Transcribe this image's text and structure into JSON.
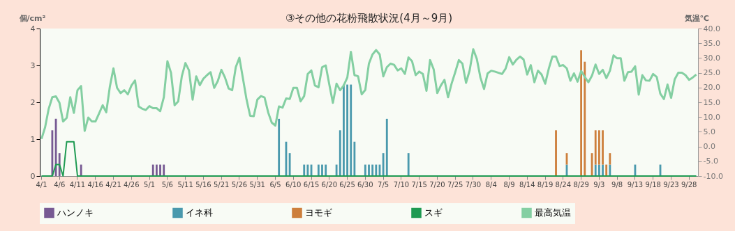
{
  "chart_data": {
    "type": "bar",
    "title": "③その他の花粉飛散状況(4月～9月)",
    "ylabel": "個/cm²",
    "y2label": "気温℃",
    "categories": [
      "4/1",
      null,
      null,
      null,
      null,
      "4/6",
      null,
      null,
      null,
      null,
      "4/11",
      null,
      null,
      null,
      null,
      "4/16",
      null,
      null,
      null,
      null,
      "4/21",
      null,
      null,
      null,
      null,
      "4/26",
      null,
      null,
      null,
      null,
      "5/1",
      null,
      null,
      null,
      null,
      "5/6",
      null,
      null,
      null,
      null,
      "5/11",
      null,
      null,
      null,
      null,
      "5/16",
      null,
      null,
      null,
      null,
      "5/21",
      null,
      null,
      null,
      null,
      "5/26",
      null,
      null,
      null,
      null,
      "5/31",
      null,
      null,
      null,
      null,
      "6/5",
      null,
      null,
      null,
      null,
      "6/10",
      null,
      null,
      null,
      null,
      "6/15",
      null,
      null,
      null,
      null,
      "6/20",
      null,
      null,
      null,
      null,
      "6/25",
      null,
      null,
      null,
      null,
      "6/30",
      null,
      null,
      null,
      null,
      "7/5",
      null,
      null,
      null,
      null,
      "7/10",
      null,
      null,
      null,
      null,
      "7/15",
      null,
      null,
      null,
      null,
      "7/20",
      null,
      null,
      null,
      null,
      "7/25",
      null,
      null,
      null,
      null,
      "7/30",
      null,
      null,
      null,
      null,
      "8/4",
      null,
      null,
      null,
      null,
      "8/9",
      null,
      null,
      null,
      null,
      "8/14",
      null,
      null,
      null,
      null,
      "8/19",
      null,
      null,
      null,
      null,
      "8/24",
      null,
      null,
      null,
      null,
      "8/29",
      null,
      null,
      null,
      null,
      "9/3",
      null,
      null,
      null,
      null,
      "9/8",
      null,
      null,
      null,
      null,
      "9/13",
      null,
      null,
      null,
      null,
      "9/18",
      null,
      null,
      null,
      null,
      "9/23",
      null,
      null,
      null,
      null,
      "9/28",
      null,
      null
    ],
    "ylim": [
      0,
      4
    ],
    "yticks": [
      0,
      1,
      2,
      3,
      4
    ],
    "y2lim": [
      -10,
      40
    ],
    "y2ticks": [
      {
        "value": -10,
        "label": "-10.0"
      },
      {
        "value": -5,
        "label": "-5.0"
      },
      {
        "value": 0,
        "label": "0.0"
      },
      {
        "value": 5,
        "label": "5.0"
      },
      {
        "value": 10,
        "label": "10.0"
      },
      {
        "value": 15,
        "label": "15.0"
      },
      {
        "value": 20,
        "label": "20.0"
      },
      {
        "value": 25,
        "label": "25.0"
      },
      {
        "value": 30,
        "label": "30.0"
      },
      {
        "value": 35,
        "label": "35.0"
      },
      {
        "value": 40,
        "label": "40.0"
      }
    ],
    "stacked": true,
    "legend": "bottom",
    "series": [
      {
        "name": "ハンノキ",
        "color": "#775a93",
        "values": [
          null,
          null,
          null,
          1.24,
          1.55,
          0.62,
          null,
          null,
          null,
          null,
          null,
          0.31,
          null,
          null,
          null,
          null,
          null,
          null,
          null,
          null,
          null,
          null,
          null,
          null,
          null,
          null,
          null,
          null,
          null,
          null,
          null,
          0.31,
          0.31,
          0.31,
          0.31,
          null,
          null,
          null,
          null,
          null,
          null,
          null,
          null,
          null,
          null,
          null,
          null,
          null,
          null,
          null,
          null,
          null,
          null,
          null,
          null,
          null,
          null,
          null,
          null,
          null,
          null,
          null,
          null,
          null,
          null,
          null,
          null,
          null,
          null,
          null,
          null,
          null,
          null,
          null,
          null,
          null,
          null,
          null,
          null,
          null,
          null,
          null,
          null,
          null,
          null,
          null,
          null,
          null,
          null,
          null,
          null,
          null,
          null,
          null,
          null,
          null,
          null,
          null,
          null,
          null,
          null,
          null,
          null,
          null,
          null,
          null,
          null,
          null,
          null,
          null,
          null,
          null,
          null,
          null,
          null,
          null,
          null,
          null,
          null,
          null,
          null,
          null,
          null,
          null,
          null,
          null,
          null,
          null,
          null,
          null,
          null,
          null,
          null,
          null,
          null,
          null,
          null,
          null,
          null,
          null,
          null,
          null,
          null,
          null,
          null,
          null,
          null,
          null,
          null,
          null,
          null,
          null,
          null,
          null,
          null,
          null,
          null,
          null,
          null,
          null,
          null,
          null,
          null,
          null,
          null,
          null,
          null,
          null,
          null,
          null,
          null,
          null,
          null,
          null,
          null,
          null,
          null,
          null,
          null,
          null,
          null,
          null,
          null
        ]
      },
      {
        "name": "イネ科",
        "color": "#4a99ad",
        "values": [
          null,
          null,
          null,
          null,
          null,
          null,
          null,
          null,
          null,
          null,
          null,
          null,
          null,
          null,
          null,
          null,
          null,
          null,
          null,
          null,
          null,
          null,
          null,
          null,
          null,
          null,
          null,
          null,
          null,
          null,
          null,
          null,
          null,
          null,
          null,
          null,
          null,
          null,
          null,
          null,
          null,
          null,
          null,
          null,
          null,
          null,
          null,
          null,
          null,
          null,
          null,
          null,
          null,
          null,
          null,
          null,
          null,
          null,
          null,
          null,
          null,
          null,
          null,
          null,
          null,
          null,
          1.55,
          null,
          0.93,
          0.62,
          null,
          null,
          null,
          0.31,
          0.31,
          0.31,
          null,
          0.31,
          0.31,
          0.31,
          null,
          null,
          0.31,
          1.24,
          2.48,
          2.48,
          2.48,
          0.93,
          null,
          null,
          0.31,
          0.31,
          0.31,
          0.31,
          0.31,
          0.62,
          1.55,
          null,
          null,
          null,
          null,
          null,
          0.62,
          null,
          null,
          null,
          null,
          null,
          null,
          null,
          null,
          null,
          null,
          null,
          null,
          null,
          null,
          null,
          null,
          null,
          null,
          null,
          null,
          null,
          null,
          null,
          null,
          null,
          null,
          null,
          null,
          null,
          null,
          null,
          null,
          null,
          null,
          null,
          null,
          null,
          null,
          null,
          null,
          null,
          null,
          null,
          0.31,
          null,
          null,
          null,
          null,
          null,
          null,
          null,
          0.31,
          0.31,
          0.31,
          null,
          0.31,
          null,
          null,
          null,
          null,
          null,
          null,
          0.31,
          null,
          null,
          null,
          null,
          null,
          null,
          0.31,
          null,
          null,
          null,
          null,
          null,
          null,
          null,
          null,
          null,
          null
        ]
      },
      {
        "name": "ヨモギ",
        "color": "#cd7f3c",
        "values": [
          null,
          null,
          null,
          null,
          null,
          null,
          null,
          null,
          null,
          null,
          null,
          null,
          null,
          null,
          null,
          null,
          null,
          null,
          null,
          null,
          null,
          null,
          null,
          null,
          null,
          null,
          null,
          null,
          null,
          null,
          null,
          null,
          null,
          null,
          null,
          null,
          null,
          null,
          null,
          null,
          null,
          null,
          null,
          null,
          null,
          null,
          null,
          null,
          null,
          null,
          null,
          null,
          null,
          null,
          null,
          null,
          null,
          null,
          null,
          null,
          null,
          null,
          null,
          null,
          null,
          null,
          null,
          null,
          null,
          null,
          null,
          null,
          null,
          null,
          null,
          null,
          null,
          null,
          null,
          null,
          null,
          null,
          null,
          null,
          null,
          null,
          null,
          null,
          null,
          null,
          null,
          null,
          null,
          null,
          null,
          null,
          null,
          null,
          null,
          null,
          null,
          null,
          null,
          null,
          null,
          null,
          null,
          null,
          null,
          null,
          null,
          null,
          null,
          null,
          null,
          null,
          null,
          null,
          null,
          null,
          null,
          null,
          null,
          null,
          null,
          null,
          null,
          null,
          null,
          null,
          null,
          null,
          null,
          null,
          null,
          null,
          null,
          null,
          null,
          null,
          null,
          null,
          null,
          1.24,
          null,
          null,
          0.31,
          null,
          null,
          null,
          3.41,
          3.1,
          null,
          0.62,
          0.93,
          0.93,
          0.93,
          0.31,
          0.31,
          null,
          null,
          null,
          null,
          null,
          null,
          null,
          null,
          null,
          null,
          null,
          null,
          null,
          null,
          null,
          null,
          null,
          null,
          null,
          null,
          null,
          null,
          null,
          null
        ]
      },
      {
        "name": "スギ",
        "type": "line",
        "color": "#1e9a52",
        "values": [
          0,
          0,
          0,
          0,
          0.31,
          0.31,
          0,
          0.93,
          0.93,
          0.93,
          0,
          0,
          0,
          0,
          0,
          0,
          0,
          0,
          0,
          0,
          0,
          0,
          0,
          0,
          0,
          0,
          0,
          0,
          0,
          0,
          0,
          0,
          0,
          0,
          0,
          0,
          0,
          0,
          0,
          0,
          0,
          0,
          0,
          0,
          0,
          0,
          0,
          0,
          0,
          0,
          0,
          0,
          0,
          0,
          0,
          0,
          0,
          0,
          0,
          0,
          0,
          0,
          0,
          0,
          0,
          0,
          0,
          0,
          0,
          0,
          0,
          0,
          0,
          0,
          0,
          0,
          0,
          0,
          0,
          0,
          0,
          0,
          0,
          0,
          0,
          0,
          0,
          0,
          0,
          0,
          0,
          0,
          0,
          0,
          0,
          0,
          0,
          0,
          0,
          0,
          0,
          0,
          0,
          0,
          0,
          0,
          0,
          0,
          0,
          0,
          0,
          0,
          0,
          0,
          0,
          0,
          0,
          0,
          0,
          0,
          0,
          0,
          0,
          0,
          0,
          0,
          0,
          0,
          0,
          0,
          0,
          0,
          0,
          0,
          0,
          0,
          0,
          0,
          0,
          0,
          0,
          0,
          0,
          0,
          0,
          0,
          0,
          0,
          0,
          0,
          0,
          0,
          0,
          0,
          0,
          0,
          0,
          0,
          0,
          0,
          0,
          0,
          0,
          0,
          0,
          0,
          0,
          0,
          0,
          0,
          0,
          0,
          0,
          0,
          0,
          0,
          0,
          0,
          0,
          0,
          0,
          0,
          0
        ]
      },
      {
        "name": "最高気温",
        "type": "line",
        "axis": "y2",
        "color": "#84cfa2",
        "values": [
          2.6,
          6.5,
          12.8,
          16.7,
          17.0,
          14.8,
          8.5,
          9.7,
          16.7,
          11.4,
          19.1,
          20.5,
          5.3,
          9.8,
          8.5,
          8.5,
          11.2,
          14.0,
          11.6,
          20.3,
          26.5,
          19.9,
          18.1,
          19.1,
          17.7,
          20.7,
          22.4,
          13.6,
          12.8,
          12.4,
          13.7,
          13.0,
          13.0,
          12.0,
          16.7,
          28.9,
          25.0,
          14.0,
          15.3,
          23.8,
          28.3,
          25.8,
          15.9,
          23.8,
          20.8,
          23.0,
          24.2,
          25.2,
          19.9,
          22.2,
          26.0,
          23.4,
          19.7,
          19.1,
          26.9,
          30.1,
          23.0,
          15.9,
          10.4,
          10.3,
          15.9,
          17.1,
          16.6,
          11.6,
          8.1,
          7.1,
          13.6,
          13.2,
          16.3,
          16.1,
          19.9,
          19.9,
          15.3,
          17.1,
          24.6,
          25.8,
          20.7,
          20.1,
          26.9,
          27.5,
          21.0,
          14.8,
          21.3,
          19.1,
          20.7,
          23.4,
          32.1,
          24.2,
          23.8,
          17.7,
          19.2,
          28.1,
          31.2,
          32.7,
          31.2,
          23.8,
          26.9,
          28.1,
          27.7,
          25.8,
          26.5,
          24.6,
          30.2,
          28.9,
          24.2,
          25.4,
          24.6,
          18.9,
          29.3,
          26.2,
          18.1,
          20.7,
          22.6,
          16.7,
          21.4,
          25.2,
          29.3,
          28.1,
          21.6,
          25.8,
          33.0,
          29.7,
          23.4,
          19.5,
          24.8,
          25.7,
          25.4,
          25.0,
          24.6,
          26.4,
          30.3,
          27.8,
          29.4,
          30.5,
          29.5,
          24.4,
          27.6,
          21.8,
          25.7,
          24.4,
          21.3,
          26.4,
          30.5,
          30.5,
          27.3,
          27.6,
          26.5,
          22.3,
          24.8,
          22.0,
          25.6,
          23.6,
          21.8,
          24.0,
          27.8,
          24.6,
          26.0,
          23.2,
          25.7,
          30.9,
          29.9,
          29.9,
          22.3,
          25.2,
          25.4,
          27.2,
          17.6,
          24.2,
          22.4,
          22.3,
          24.6,
          23.6,
          17.9,
          16.1,
          21.0,
          16.5,
          22.8,
          25.0,
          25.0,
          24.2,
          22.6,
          23.4,
          24.4
        ]
      }
    ]
  }
}
